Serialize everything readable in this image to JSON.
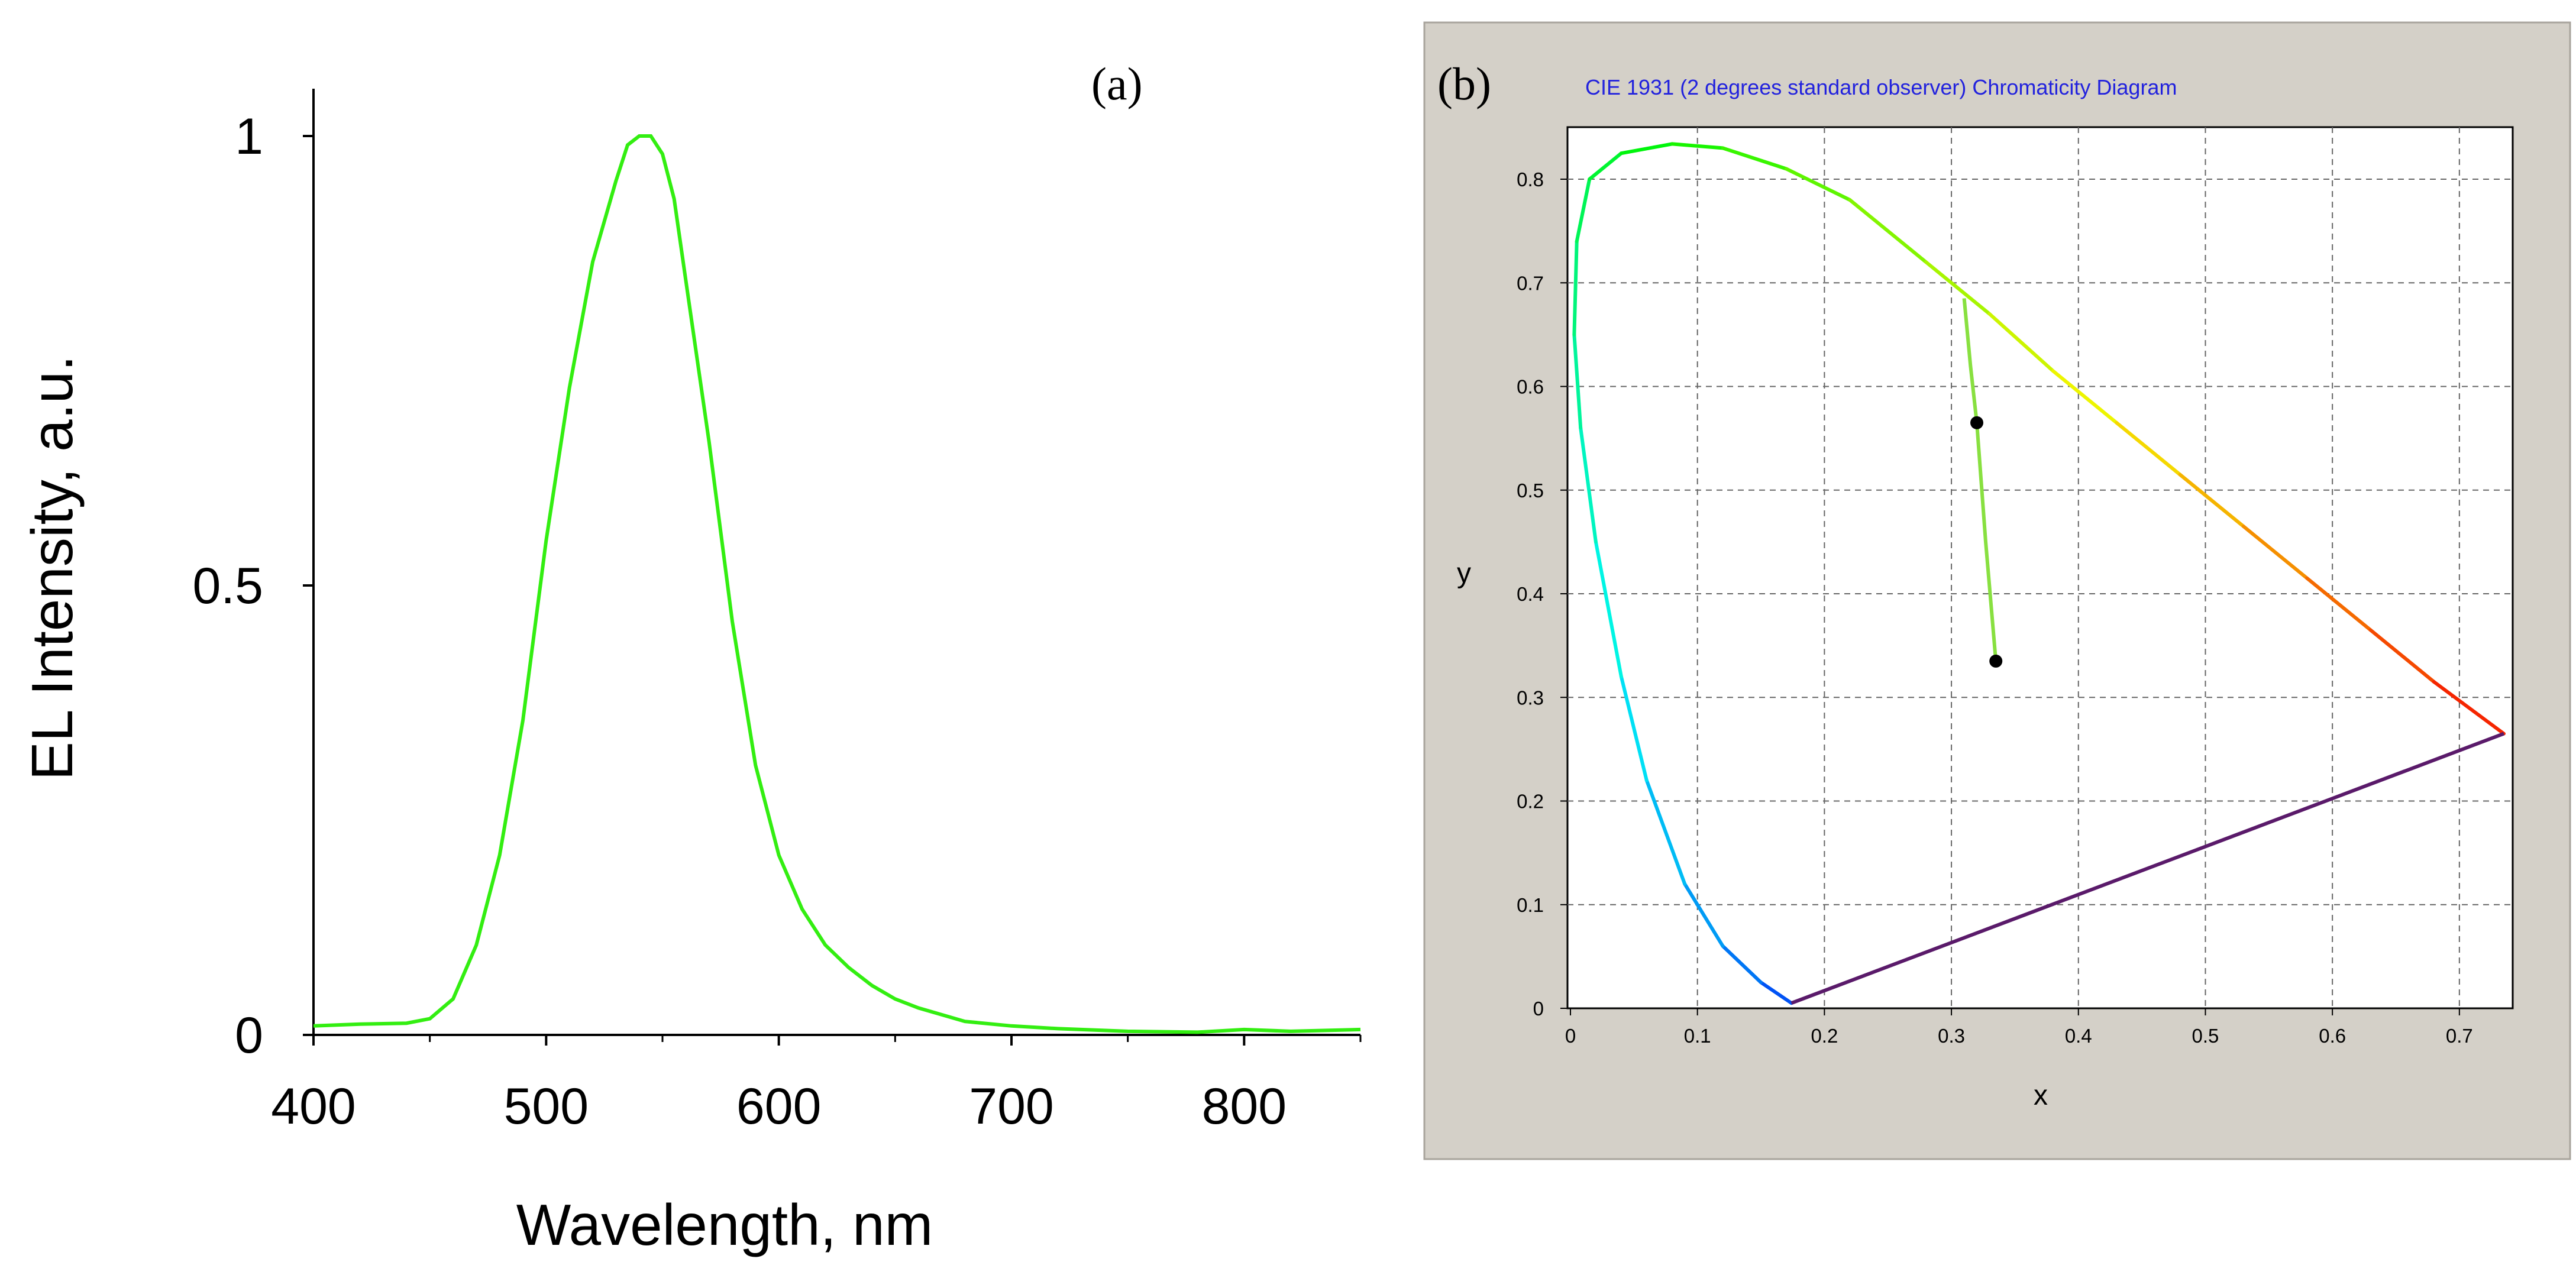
{
  "chart_data": [
    {
      "panel_label": "(a)",
      "type": "line",
      "xlabel": "Wavelength, nm",
      "ylabel": "EL Intensity, a.u.",
      "xlim": [
        400,
        850
      ],
      "ylim": [
        0,
        1.0
      ],
      "x_ticks": [
        400,
        500,
        600,
        700,
        800
      ],
      "y_ticks": [
        0,
        0.5,
        1
      ],
      "x_tick_labels": [
        "400",
        "500",
        "600",
        "700",
        "800"
      ],
      "y_tick_labels": [
        "0",
        "0.5",
        "1"
      ],
      "grid": false,
      "series_color": "#33ee11",
      "series": [
        {
          "x": [
            400,
            420,
            440,
            450,
            460,
            470,
            480,
            490,
            500,
            510,
            520,
            530,
            535,
            540,
            545,
            550,
            555,
            560,
            570,
            580,
            590,
            600,
            610,
            620,
            630,
            640,
            650,
            660,
            680,
            700,
            720,
            750,
            780,
            800,
            820,
            850
          ],
          "y": [
            0.01,
            0.012,
            0.013,
            0.018,
            0.04,
            0.1,
            0.2,
            0.35,
            0.55,
            0.72,
            0.86,
            0.95,
            0.99,
            1.0,
            1.0,
            0.98,
            0.93,
            0.84,
            0.66,
            0.46,
            0.3,
            0.2,
            0.14,
            0.1,
            0.075,
            0.055,
            0.04,
            0.03,
            0.015,
            0.01,
            0.007,
            0.004,
            0.003,
            0.006,
            0.004,
            0.006
          ]
        }
      ]
    },
    {
      "panel_label": "(b)",
      "type": "scatter",
      "title": "CIE 1931 (2 degrees standard observer) Chromaticity Diagram",
      "xlabel": "x",
      "ylabel": "y",
      "xlim": [
        0,
        0.75
      ],
      "ylim": [
        0,
        0.85
      ],
      "x_ticks": [
        0,
        0.1,
        0.2,
        0.3,
        0.4,
        0.5,
        0.6,
        0.7
      ],
      "y_ticks": [
        0,
        0.1,
        0.2,
        0.3,
        0.4,
        0.5,
        0.6,
        0.7,
        0.8
      ],
      "x_tick_labels": [
        "0",
        "0.1",
        "0.2",
        "0.3",
        "0.4",
        "0.5",
        "0.6",
        "0.7"
      ],
      "y_tick_labels": [
        "0",
        "0.1",
        "0.2",
        "0.3",
        "0.4",
        "0.5",
        "0.6",
        "0.7",
        "0.8"
      ],
      "grid": true,
      "spectral_locus": {
        "x": [
          0.174,
          0.15,
          0.12,
          0.09,
          0.06,
          0.04,
          0.02,
          0.008,
          0.003,
          0.005,
          0.015,
          0.04,
          0.08,
          0.12,
          0.17,
          0.22,
          0.28,
          0.33,
          0.38,
          0.43,
          0.48,
          0.53,
          0.58,
          0.63,
          0.68,
          0.735
        ],
        "y": [
          0.005,
          0.025,
          0.06,
          0.12,
          0.22,
          0.32,
          0.45,
          0.56,
          0.65,
          0.74,
          0.8,
          0.825,
          0.834,
          0.83,
          0.81,
          0.78,
          0.72,
          0.67,
          0.615,
          0.565,
          0.515,
          0.465,
          0.415,
          0.365,
          0.315,
          0.265
        ]
      },
      "purple_line": {
        "x": [
          0.174,
          0.735
        ],
        "y": [
          0.005,
          0.265
        ]
      },
      "points": [
        {
          "x": 0.32,
          "y": 0.565
        },
        {
          "x": 0.335,
          "y": 0.335
        }
      ],
      "path_line": {
        "x": [
          0.335,
          0.327,
          0.32,
          0.315,
          0.31
        ],
        "y": [
          0.335,
          0.45,
          0.565,
          0.62,
          0.685
        ]
      },
      "colors": {
        "background_panel": "#d4d0c8",
        "plot_bg": "#ffffff",
        "grid": "#666666",
        "title": "#2222dd",
        "purple": "#5a1a6a",
        "points": "#000000",
        "path_line": "#88e040"
      }
    }
  ]
}
